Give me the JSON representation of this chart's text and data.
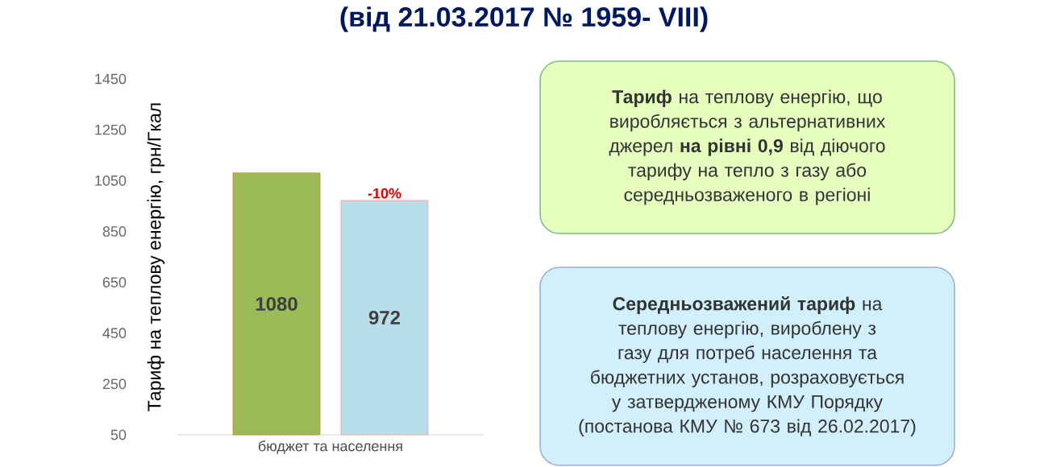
{
  "chart_data": {
    "type": "bar",
    "title": "(від 21.03.2017 № 1959- VIII)",
    "ylabel": "Тариф на теплову енергію, грн/Гкал",
    "categories": [
      "бюджет та населення"
    ],
    "series": [
      {
        "color": "#9bbb59",
        "values": [
          1080
        ]
      },
      {
        "color": "#b7dde8",
        "values": [
          972
        ]
      }
    ],
    "ylim": [
      50,
      1450
    ],
    "yticks": [
      50,
      250,
      450,
      650,
      850,
      1050,
      1250,
      1450
    ],
    "grid": false,
    "data_labels": true,
    "annotations": [
      "-10%",
      "**Тариф** на теплову енергію, що виробляється з альтернативних джерел **на рівні 0,9** від діючого тарифу на тепло з газу або середньозваженого  в регіоні",
      "**Середньозважений тариф** на теплову енергію, вироблену з газу для потреб населення та бюджетних установ, розраховується у затвердженому КМУ Порядку (постанова КМУ № 673 від 26.02.2017)"
    ]
  }
}
